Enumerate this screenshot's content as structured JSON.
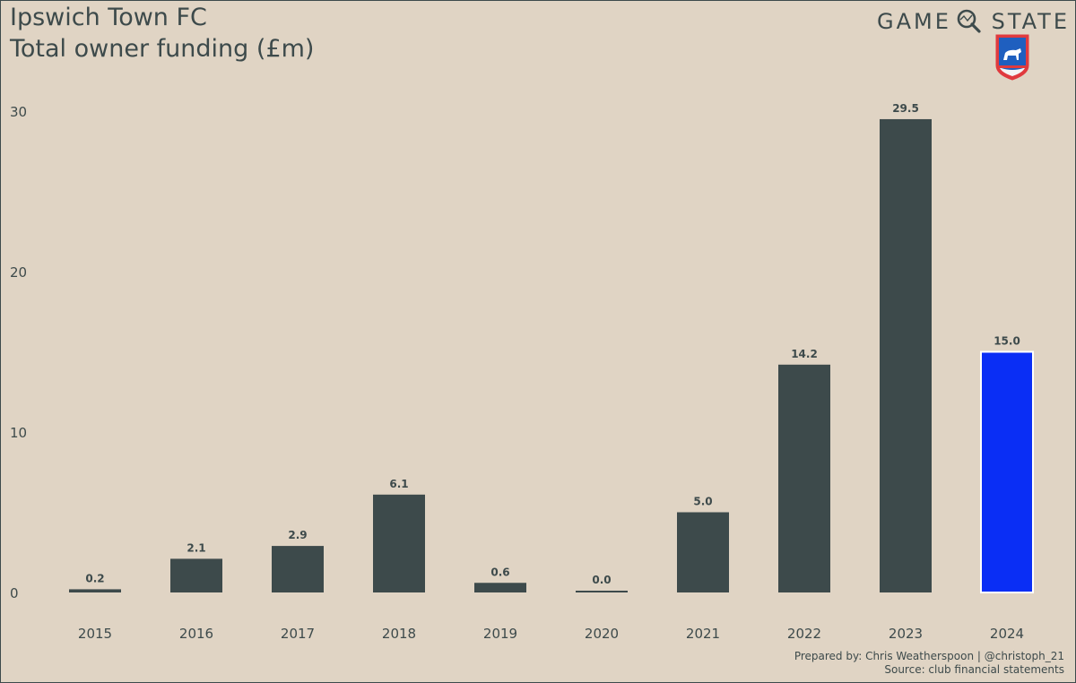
{
  "header": {
    "title": "Ipswich Town FC",
    "subtitle": "Total owner funding (£m)",
    "logo_text_left": "GAME",
    "logo_text_right": "STATE",
    "logo_icon": "magnifier-icon",
    "crest_icon": "ipswich-crest-icon"
  },
  "footer": {
    "prepared_by": "Prepared by: Chris Weatherspoon | @christoph_21",
    "source": "Source: club financial statements"
  },
  "colors": {
    "background": "#e0d4c4",
    "bar": "#3d4a4b",
    "highlight": "#0a2ef5",
    "text": "#3d4a4b"
  },
  "chart_data": {
    "type": "bar",
    "categories": [
      "2015",
      "2016",
      "2017",
      "2018",
      "2019",
      "2020",
      "2021",
      "2022",
      "2023",
      "2024"
    ],
    "values": [
      0.2,
      2.1,
      2.9,
      6.1,
      0.6,
      0.0,
      5.0,
      14.2,
      29.5,
      15.0
    ],
    "data_labels": [
      "0.2",
      "2.1",
      "2.9",
      "6.1",
      "0.6",
      "0.0",
      "5.0",
      "14.2",
      "29.5",
      "15.0"
    ],
    "highlight_category": "2024",
    "yticks": [
      0,
      10,
      20,
      30
    ],
    "ylim": [
      0,
      30
    ],
    "xlabel": "",
    "ylabel": "",
    "grid": false,
    "legend": false
  }
}
